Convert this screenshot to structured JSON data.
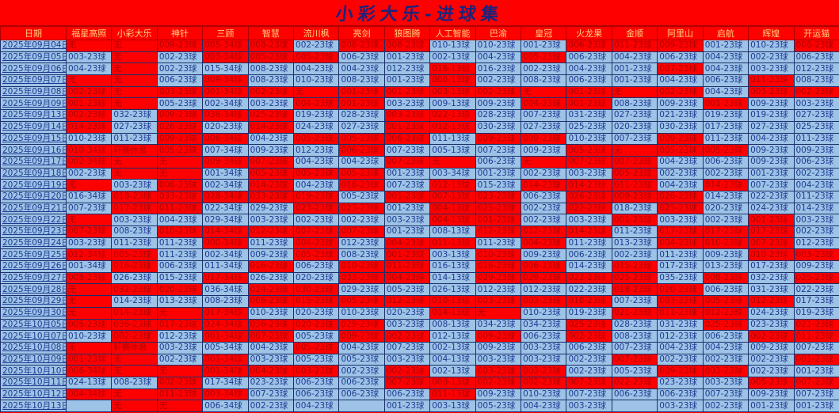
{
  "title": "小彩大乐-进球集",
  "colors": {
    "R": "#ff0000",
    "B": "#9dc3e6",
    "header_text": "#ffd27a",
    "title_text": "#1a237e"
  },
  "date_header": "日期",
  "columns": [
    "福星高照",
    "小彩大乐",
    "神针",
    "三顾",
    "智慧",
    "流川枫",
    "亮剑",
    "狼图腾",
    "人工智能",
    "巴渝",
    "皇冠",
    "火龙果",
    "金顺",
    "阿里山",
    "启航",
    "辉煌",
    "开运猫"
  ],
  "rows": [
    {
      "date": "2025年09月04日",
      "colors": "RRRRRBRRBBBRRRBBR",
      "cells": [
        "无",
        "无",
        "009-23球",
        "005-34球",
        "008-23球",
        "002-23球",
        "008-23球",
        "008-23球",
        "010-13球",
        "010-23球",
        "001-23球",
        "006-23球",
        "011-23球",
        "009-23球",
        "001-23球",
        "010-23球",
        "006-23球"
      ]
    },
    {
      "date": "2025年09月05日",
      "colors": "BRBRRRBBBBRBBBBBB",
      "cells": [
        "003-23球",
        "无",
        "002-23球",
        "003-34球",
        "005-23球",
        "005-23球",
        "006-23球",
        "001-23球",
        "002-13球",
        "004-23球",
        "005-23球",
        "006-23球",
        "004-23球",
        "006-23球",
        "004-23球",
        "002-23球",
        "006-23球"
      ]
    },
    {
      "date": "2025年09月06日",
      "colors": "BRBBBBBBRBBBBRBBB",
      "cells": [
        "004-23球",
        "无",
        "002-23球",
        "015-34球",
        "008-23球",
        "004-23球",
        "004-23球",
        "012-23球",
        "016-13球",
        "016-23球",
        "002-23球",
        "004-23球",
        "001-23球",
        "007-23球",
        "004-23球",
        "003-23球",
        "012-23球"
      ]
    },
    {
      "date": "2025年09月07日",
      "colors": "RRBRBBBBRBBBBBBRB",
      "cells": [
        "无",
        "无",
        "006-23球",
        "009-34球",
        "008-23球",
        "010-23球",
        "008-23球",
        "001-23球",
        "006-13球",
        "002-23球",
        "008-23球",
        "006-23球",
        "001-23球",
        "004-23球",
        "006-23球",
        "011-23球",
        "008-23球"
      ]
    },
    {
      "date": "2025年09月08日",
      "colors": "RRRRRRRRRRRRRRBRR",
      "cells": [
        "002-23球",
        "无",
        "003-23球",
        "001-34球",
        "002-23球",
        "无",
        "001-23球",
        "001-23球",
        "003-13球",
        "002-23球",
        "无",
        "001-23球",
        "无",
        "002-23球",
        "004-23球",
        "003-23球",
        "002-23球"
      ]
    },
    {
      "date": "2025年09月09日",
      "colors": "RRBBBRRBBBRRBBRBB",
      "cells": [
        "001-23球",
        "无",
        "005-23球",
        "002-34球",
        "003-23球",
        "004-23球",
        "001-23球",
        "003-23球",
        "009-13球",
        "009-23球",
        "004-23球",
        "001-23球",
        "008-23球",
        "009-23球",
        "001-23球",
        "009-23球",
        "003-23球"
      ]
    },
    {
      "date": "2025年09月13日",
      "colors": "RBRRRBBRRBBBBBBBB",
      "cells": [
        "002-23球",
        "032-23球",
        "009-23球",
        "036-34球",
        "025-23球",
        "019-23球",
        "028-23球",
        "003-23球",
        "022-13球",
        "028-23球",
        "007-23球",
        "031-23球",
        "027-23球",
        "021-23球",
        "019-23球",
        "019-23球",
        "027-23球"
      ]
    },
    {
      "date": "2025年09月14日",
      "colors": "RBRBRBBRRBBBBBBBB",
      "cells": [
        "014-23球",
        "027-23球",
        "026-23球",
        "020-23球",
        "014-23球",
        "024-23球",
        "027-23球",
        "001-23球",
        "012-13球",
        "030-23球",
        "027-23球",
        "025-23球",
        "020-23球",
        "030-23球",
        "017-23球",
        "027-23球",
        "025-23球"
      ]
    },
    {
      "date": "2025年09月15日",
      "colors": "BBRRBRRRBRRBBRBBB",
      "cells": [
        "010-23球",
        "011-23球",
        "009-23球",
        "006-34球",
        "004-23球",
        "005-23球",
        "005-23球",
        "006-23球",
        "011-13球",
        "009-23球",
        "009-23球",
        "010-23球",
        "007-23球",
        "009-23球",
        "011-23球",
        "004-23球",
        "011-23球"
      ]
    },
    {
      "date": "2025年09月16日",
      "colors": "RRRBBBRBBBBRRRRBB",
      "cells": [
        "010-34球",
        "轩赛休息",
        "005-23球",
        "007-34球",
        "009-23球",
        "012-23球",
        "006-23球",
        "007-23球",
        "005-13球",
        "007-23球",
        "009-23球",
        "005-23球",
        "无",
        "005-23球",
        "005-23球",
        "009-23球",
        "009-23球"
      ]
    },
    {
      "date": "2025年09月17日",
      "colors": "RRRRRBBRRBRRRBBBB",
      "cells": [
        "002-34球",
        "无",
        "无",
        "009-34球",
        "007-23球",
        "004-23球",
        "004-23球",
        "007-23球",
        "无",
        "006-23球",
        "无",
        "007-23球",
        "007-23球",
        "004-23球",
        "006-23球",
        "009-23球",
        "006-23球"
      ]
    },
    {
      "date": "2025年09月18日",
      "colors": "BRRBRRRBBBBBRBBBB",
      "cells": [
        "002-23球",
        "无",
        "无",
        "001-34球",
        "005-23球",
        "005-23球",
        "005-23球",
        "001-23球",
        "003-34球",
        "001-23球",
        "002-23球",
        "003-23球",
        "005-23球",
        "002-23球",
        "002-23球",
        "001-23球",
        "002-23球"
      ]
    },
    {
      "date": "2025年09月19日",
      "colors": "RBRBRBRBRBRRRBRBB",
      "cells": [
        "无",
        "003-23球",
        "006-23球",
        "002-34球",
        "014-23球",
        "004-23球",
        "016-23球",
        "007-23球",
        "012-13球",
        "015-23球",
        "014-23球",
        "014-23球",
        "011-23球",
        "004-23球",
        "014-23球",
        "007-23球",
        "004-23球"
      ]
    },
    {
      "date": "2025年09月20日",
      "colors": "BRRRRRBRRRBRRRBBB",
      "cells": [
        "016-34球",
        "018-23球",
        "033-23球",
        "028-34球",
        "033-23球",
        "019-23球",
        "005-23球",
        "001-23球",
        "007-13球",
        "023-23球",
        "006-23球",
        "026-23球",
        "009-23球",
        "026-23球",
        "014-23球",
        "022-23球",
        "011-23球"
      ]
    },
    {
      "date": "2025年09月21日",
      "colors": "BRRBBRRBRRBRBRBBB",
      "cells": [
        "007-23球",
        "017-23球",
        "011-23球",
        "022-34球",
        "029-23球",
        "023-23球",
        "023-23球",
        "001-23球",
        "004-13球",
        "025-23球",
        "002-23球",
        "022-23球",
        "018-23球",
        "025-23球",
        "020-23球",
        "024-23球",
        "014-23球"
      ]
    },
    {
      "date": "2025年09月22日",
      "colors": "RBBBBBBBRRBBRBBRB",
      "cells": [
        "无",
        "003-23球",
        "004-23球",
        "029-34球",
        "003-23球",
        "002-23球",
        "002-23球",
        "003-23球",
        "004-13球",
        "001-23球",
        "002-23球",
        "003-23球",
        "001-23球",
        "003-23球",
        "002-23球",
        "001-23球",
        "003-23球"
      ]
    },
    {
      "date": "2025年09月23日",
      "colors": "RBRRRRRBBRRRBRRRB",
      "cells": [
        "007-23球",
        "008-23球",
        "010-23球",
        "014-34球",
        "012-23球",
        "007-23球",
        "007-23球",
        "001-23球",
        "008-13球",
        "012-23球",
        "012-23球",
        "014-23球",
        "011-23球",
        "017-23球",
        "017-23球",
        "017-23球",
        "002-23球"
      ]
    },
    {
      "date": "2025年09月24日",
      "colors": "BBBRBRBRRBRBBRRRB",
      "cells": [
        "003-23球",
        "011-23球",
        "011-23球",
        "000-34球",
        "011-23球",
        "004-23球",
        "012-23球",
        "004-23球",
        "011-13球",
        "011-23球",
        "004-23球",
        "011-23球",
        "013-23球",
        "004-23球",
        "010-23球",
        "007-23球",
        "012-23球"
      ]
    },
    {
      "date": "2025年09月25日",
      "colors": "RRBBBRBRBRBBBBBRR",
      "cells": [
        "012-34球",
        "005-23球",
        "011-23球",
        "002-34球",
        "009-23球",
        "005-23球",
        "008-23球",
        "001-23球",
        "003-13球",
        "010-23球",
        "009-23球",
        "006-23球",
        "002-23球",
        "011-23球",
        "009-23球",
        "010-23球",
        "003-23球"
      ]
    },
    {
      "date": "2025年09月26日",
      "colors": "BRBBRBRRBRRBRBBBB",
      "cells": [
        "001-34球",
        "016-23球",
        "006-23球",
        "011-34球",
        "016-23球",
        "006-23球",
        "010-23球",
        "011-23球",
        "016-13球",
        "016-23球",
        "006-23球",
        "014-23球",
        "015-23球",
        "017-23球",
        "013-23球",
        "017-23球",
        "009-23球"
      ]
    },
    {
      "date": "2025年09月27日",
      "colors": "RBBRBBRRBRRRRBRBR",
      "cells": [
        "008-23球",
        "026-23球",
        "015-23球",
        "017-34球",
        "026-23球",
        "020-23球",
        "033-23球",
        "004-23球",
        "014-13球",
        "029-23球",
        "029-23球",
        "022-23球",
        "025-23球",
        "035-23球",
        "008-23球",
        "032-23球",
        "025-23球"
      ]
    },
    {
      "date": "2025年09月28日",
      "colors": "RRRBRRBBBBBBRRBBB",
      "cells": [
        "无",
        "032-23球",
        "020-23球",
        "036-34球",
        "024-23球",
        "030-23球",
        "029-23球",
        "005-23球",
        "026-13球",
        "012-23球",
        "012-23球",
        "022-23球",
        "018-23球",
        "020-23球",
        "006-23球",
        "031-23球",
        "022-23球"
      ]
    },
    {
      "date": "2025年09月29日",
      "colors": "RBBBRRRRRRRRBRRRB",
      "cells": [
        "无",
        "014-23球",
        "013-23球",
        "008-23球",
        "006-23球",
        "015-23球",
        "005-23球",
        "012-23球",
        "010-13球",
        "003-23球",
        "003-23球",
        "010-23球",
        "007-23球",
        "003-23球",
        "005-23球",
        "012-23球",
        "017-23球"
      ]
    },
    {
      "date": "2025年09月30日",
      "colors": "RRRRBBBBRRBBRRRBB",
      "cells": [
        "无",
        "014-23球",
        "无",
        "017-34球",
        "010-23球",
        "020-23球",
        "010-23球",
        "020-23球",
        "014-13球",
        "无",
        "010-23球",
        "019-23球",
        "021-23球",
        "011-23球",
        "012-23球",
        "024-23球",
        "019-23球"
      ]
    },
    {
      "date": "2025年10月05日",
      "colors": "RRRRRRRBBBBRBBRBR",
      "cells": [
        "005-23球",
        "036-23球",
        "017-23球",
        "024-34球",
        "036-23球",
        "020-23球",
        "029-23球",
        "003-23球",
        "008-13球",
        "034-23球",
        "034-23球",
        "025-23球",
        "028-23球",
        "031-23球",
        "025-23球",
        "023-23球",
        "021-23球"
      ]
    },
    {
      "date": "2025年10月07日",
      "colors": "BRBRRBRRBRBRBBBRR",
      "cells": [
        "010-23球",
        "002-23球",
        "012-23球",
        "001-34球",
        "007-23球",
        "005-23球",
        "009-23球",
        "002-23球",
        "012-13球",
        "009-23球",
        "006-23球",
        "002-23球",
        "008-23球",
        "012-23球",
        "006-23球",
        "002-23球",
        "011-23球"
      ]
    },
    {
      "date": "2025年10月08日",
      "colors": "RRBBBRBBBBBBBBBBB",
      "cells": [
        "无",
        "轩赛休息",
        "003-23球",
        "005-34球",
        "004-23球",
        "005-23球",
        "004-23球",
        "007-23球",
        "002-13球",
        "009-23球",
        "003-23球",
        "006-23球",
        "007-23球",
        "004-23球",
        "004-23球",
        "009-23球",
        "007-23球"
      ]
    },
    {
      "date": "2025年10月09日",
      "colors": "RRBRBBBBBBBBRBBBR",
      "cells": [
        "001-23球",
        "无",
        "002-23球",
        "001-34球",
        "003-23球",
        "005-23球",
        "005-23球",
        "003-23球",
        "004-13球",
        "003-23球",
        "003-23球",
        "002-23球",
        "007-23球",
        "002-23球",
        "002-23球",
        "002-23球",
        "001-23球"
      ]
    },
    {
      "date": "2025年10月10日",
      "colors": "RRRRRRBRBRRBBRRBB",
      "cells": [
        "006-34球",
        "无",
        "无",
        "001-34球",
        "004-23球",
        "003-23球",
        "002-23球",
        "002-23球",
        "002-13球",
        "003-23球",
        "003-23球",
        "002-23球",
        "005-23球",
        "009-23球",
        "003-23球",
        "002-23球",
        "001-23球"
      ]
    },
    {
      "date": "2025年10月11日",
      "colors": "BBRBBBBRRRRRRBBRR",
      "cells": [
        "024-13球",
        "008-23球",
        "002-23球",
        "017-34球",
        "023-23球",
        "006-23球",
        "006-23球",
        "007-23球",
        "008-13球",
        "002-23球",
        "002-23球",
        "007-23球",
        "022-23球",
        "023-23球",
        "003-23球",
        "005-23球",
        "007-23球"
      ]
    },
    {
      "date": "2025年10月12日",
      "colors": "RRRRBBBBRBBBBBBBB",
      "cells": [
        "004-34球",
        "无",
        "011-23球",
        "003-34球",
        "007-23球",
        "006-23球",
        "006-23球",
        "006-23球",
        "011-13球",
        "009-23球",
        "010-23球",
        "007-23球",
        "006-23球",
        "006-23球",
        "007-23球",
        "009-23球",
        "007-23球"
      ]
    },
    {
      "date": "2025年10月13日",
      "colors": "BRRBBBBBBBBBBBBBB",
      "cells": [
        "",
        "无",
        "无",
        "006-34球",
        "002-23球",
        "004-23球",
        "",
        "001-23球",
        "003-13球",
        "005-23球",
        "004-23球",
        "003-23球",
        "",
        "003-23球",
        "002-23球",
        "001-23球",
        "001-23球"
      ]
    }
  ]
}
